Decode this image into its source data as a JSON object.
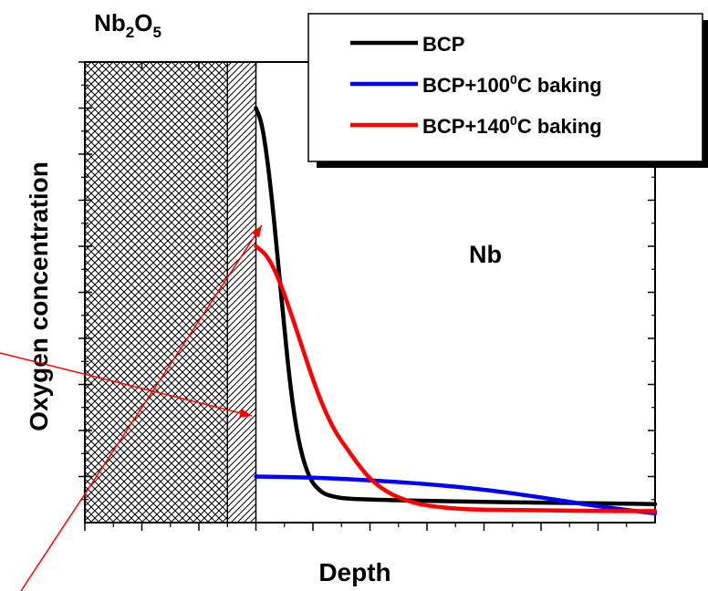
{
  "chart_data": {
    "type": "line",
    "title": "",
    "xlabel": "Depth",
    "ylabel": "Oxygen concentration",
    "oxide_label": {
      "base": "Nb",
      "sub1": "2",
      "mid": "O",
      "sub2": "5"
    },
    "metal_label": "Nb",
    "xlim": [
      0,
      10
    ],
    "ylim": [
      0,
      10
    ],
    "x_ticks": [
      0,
      1,
      2,
      3,
      4,
      5,
      6,
      7,
      8,
      9
    ],
    "y_ticks": [
      0,
      1,
      2,
      3,
      4,
      5,
      6,
      7,
      8,
      9
    ],
    "tick_labels_shown": false,
    "oxide_region": {
      "crosshatch": [
        0,
        2.5
      ],
      "diagonal_hatch": [
        2.5,
        3.0
      ]
    },
    "legend_position": "top-right",
    "series": [
      {
        "name": "BCP",
        "color": "#000000",
        "x": [
          3.0,
          3.1,
          3.2,
          3.3,
          3.4,
          3.5,
          3.6,
          3.7,
          3.8,
          3.9,
          4.0,
          4.1,
          4.2,
          4.4,
          4.6,
          5.0,
          6.0,
          7.0,
          8.0,
          9.0,
          10.0
        ],
        "y": [
          9.0,
          8.7,
          7.9,
          6.8,
          5.5,
          4.2,
          3.0,
          2.1,
          1.5,
          1.1,
          0.85,
          0.72,
          0.62,
          0.55,
          0.52,
          0.5,
          0.47,
          0.45,
          0.43,
          0.42,
          0.4
        ]
      },
      {
        "name": "BCP+100°C baking",
        "color": "#0000ff",
        "x": [
          3.0,
          4.0,
          5.0,
          6.0,
          7.0,
          8.0,
          9.0,
          10.0
        ],
        "y": [
          1.0,
          0.98,
          0.92,
          0.84,
          0.72,
          0.55,
          0.35,
          0.2
        ]
      },
      {
        "name": "BCP+140°C baking",
        "color": "#ff0000",
        "x": [
          3.0,
          3.2,
          3.4,
          3.6,
          3.8,
          4.0,
          4.2,
          4.4,
          4.6,
          4.8,
          5.0,
          5.2,
          5.4,
          5.6,
          5.8,
          6.0,
          6.5,
          7.0,
          8.0,
          9.0,
          10.0
        ],
        "y": [
          6.0,
          5.8,
          5.3,
          4.6,
          3.85,
          3.1,
          2.45,
          1.95,
          1.6,
          1.25,
          0.95,
          0.75,
          0.6,
          0.5,
          0.42,
          0.37,
          0.3,
          0.28,
          0.27,
          0.25,
          0.25
        ]
      }
    ],
    "legend": {
      "entries": [
        {
          "text": "BCP",
          "color": "#000000",
          "sup": "",
          "tail": ""
        },
        {
          "text": "BCP+100",
          "color": "#0000ff",
          "sup": "0",
          "tail": "C baking"
        },
        {
          "text": "BCP+140",
          "color": "#ff0000",
          "sup": "0",
          "tail": "C baking"
        }
      ]
    },
    "annotation_arrows": {
      "color": "#ff0000"
    }
  }
}
